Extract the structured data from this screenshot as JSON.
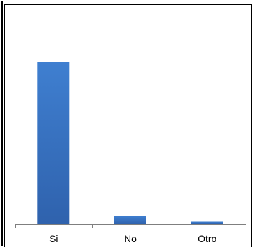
{
  "chart_data": {
    "type": "bar",
    "categories": [
      "Si",
      "No",
      "Otro"
    ],
    "values": [
      100,
      5,
      1.5
    ],
    "ylim": [
      0,
      100
    ],
    "grid": false,
    "bar_color": "#3b74c4"
  }
}
